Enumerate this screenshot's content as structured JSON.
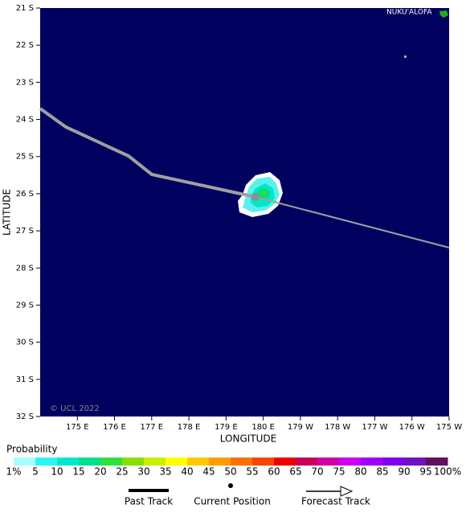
{
  "map": {
    "place_label": "NUKU'ALOFA",
    "copyright": "© UCL 2022",
    "x_axis_label": "LONGITUDE",
    "y_axis_label": "LATITUDE",
    "lat_ticks": [
      "21 S",
      "22 S",
      "23 S",
      "24 S",
      "25 S",
      "26 S",
      "27 S",
      "28 S",
      "29 S",
      "30 S",
      "31 S",
      "32 S"
    ],
    "lon_ticks": [
      "175 E",
      "176 E",
      "177 E",
      "178 E",
      "179 E",
      "180 E",
      "179 W",
      "178 W",
      "177 W",
      "176 W",
      "175 W"
    ],
    "colorbar": {
      "title": "Probability",
      "labels": [
        "1%",
        "5",
        "10",
        "15",
        "20",
        "25",
        "30",
        "35",
        "40",
        "45",
        "50",
        "55",
        "60",
        "65",
        "70",
        "75",
        "80",
        "85",
        "90",
        "95",
        "100%"
      ],
      "colors": [
        "#a8ffff",
        "#30f4f4",
        "#00e8cc",
        "#00e088",
        "#30e040",
        "#88e000",
        "#c8f000",
        "#ffff00",
        "#ffc800",
        "#ff9c00",
        "#ff7000",
        "#ff4400",
        "#ee0000",
        "#c8005a",
        "#cc00aa",
        "#cc00ee",
        "#a000ff",
        "#8000ee",
        "#7010c0",
        "#601060"
      ]
    },
    "legend": {
      "past_track": "Past Track",
      "current_position": "Current Position",
      "forecast_track": "Forecast Track"
    }
  }
}
